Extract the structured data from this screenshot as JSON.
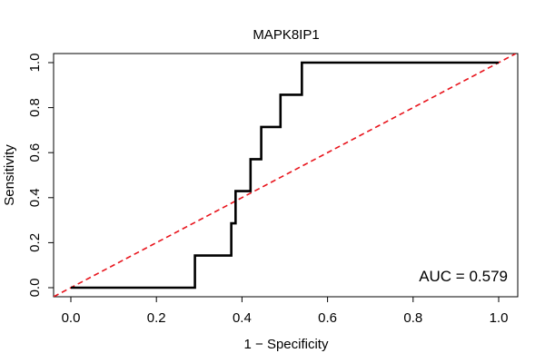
{
  "chart_data": {
    "type": "line",
    "title": "MAPK8IP1",
    "xlabel": "1 − Specificity",
    "ylabel": "Sensitivity",
    "xlim": [
      0,
      1
    ],
    "ylim": [
      0,
      1
    ],
    "x_ticks": [
      "0.0",
      "0.2",
      "0.4",
      "0.6",
      "0.8",
      "1.0"
    ],
    "y_ticks": [
      "0.0",
      "0.2",
      "0.4",
      "0.6",
      "0.8",
      "1.0"
    ],
    "series": [
      {
        "name": "ROC curve",
        "color": "#000000",
        "style": "solid",
        "x": [
          0.0,
          0.29,
          0.29,
          0.375,
          0.375,
          0.385,
          0.385,
          0.42,
          0.42,
          0.445,
          0.445,
          0.49,
          0.49,
          0.54,
          0.54,
          1.0
        ],
        "y": [
          0.0,
          0.0,
          0.143,
          0.143,
          0.286,
          0.286,
          0.429,
          0.429,
          0.571,
          0.571,
          0.714,
          0.714,
          0.857,
          0.857,
          1.0,
          1.0
        ]
      },
      {
        "name": "reference",
        "color": "#e8141c",
        "style": "dashed",
        "x": [
          -0.04,
          1.04
        ],
        "y": [
          -0.04,
          1.04
        ]
      }
    ],
    "annotation": "AUC = 0.579",
    "grid": false,
    "legend": "none"
  }
}
